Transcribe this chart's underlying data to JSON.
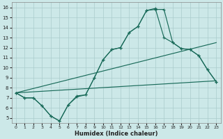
{
  "xlabel": "Humidex (Indice chaleur)",
  "background_color": "#cce8e8",
  "grid_color": "#aacccc",
  "line_color": "#1a6b5a",
  "xlim": [
    -0.5,
    23.5
  ],
  "ylim": [
    4.5,
    16.5
  ],
  "xticks": [
    0,
    1,
    2,
    3,
    4,
    5,
    6,
    7,
    8,
    9,
    10,
    11,
    12,
    13,
    14,
    15,
    16,
    17,
    18,
    19,
    20,
    21,
    22,
    23
  ],
  "yticks": [
    5,
    6,
    7,
    8,
    9,
    10,
    11,
    12,
    13,
    14,
    15,
    16
  ],
  "line1_x": [
    0,
    1,
    2,
    3,
    4,
    5,
    6,
    7,
    8,
    9,
    10,
    11,
    12,
    13,
    14,
    15,
    16,
    17,
    18,
    19,
    20,
    21,
    22,
    23
  ],
  "line1_y": [
    7.5,
    7.0,
    7.0,
    6.2,
    5.2,
    4.7,
    6.3,
    7.1,
    7.3,
    9.0,
    10.8,
    11.8,
    12.0,
    13.5,
    14.1,
    15.7,
    15.8,
    15.8,
    12.5,
    11.9,
    11.8,
    11.2,
    9.8,
    8.6
  ],
  "line2_x": [
    0,
    1,
    2,
    3,
    4,
    5,
    6,
    7,
    8,
    9,
    10,
    11,
    12,
    13,
    14,
    15,
    16,
    17,
    18,
    19,
    20,
    21,
    22,
    23
  ],
  "line2_y": [
    7.5,
    7.0,
    7.0,
    6.2,
    5.2,
    4.7,
    6.3,
    7.2,
    7.3,
    9.0,
    10.8,
    11.8,
    12.0,
    13.5,
    14.1,
    15.7,
    15.9,
    13.0,
    12.5,
    11.9,
    11.8,
    11.2,
    9.8,
    8.6
  ],
  "line3_x": [
    0,
    23
  ],
  "line3_y": [
    7.5,
    12.5
  ],
  "line4_x": [
    0,
    23
  ],
  "line4_y": [
    7.5,
    8.7
  ]
}
